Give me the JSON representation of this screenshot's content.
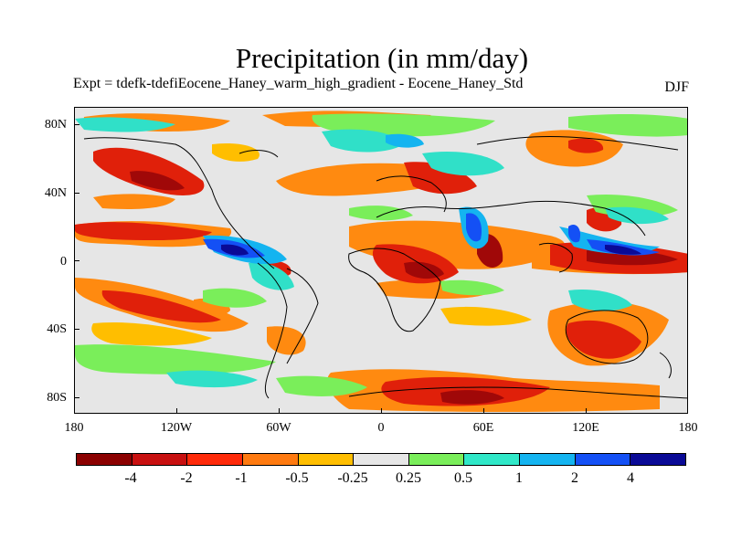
{
  "title": "Precipitation (in mm/day)",
  "subtitle": "Expt = tdefk-tdefiEocene_Haney_warm_high_gradient - Eocene_Haney_Std",
  "season": "DJF",
  "map": {
    "lat_labels": [
      "80N",
      "40N",
      "0",
      "40S",
      "80S"
    ],
    "lon_labels": [
      "180",
      "120W",
      "60W",
      "0",
      "60E",
      "120E",
      "180"
    ],
    "background_color": "#e6e6e6"
  },
  "colorbar": {
    "colors": [
      "#8b0000",
      "#c81010",
      "#ff2a0a",
      "#ff7a10",
      "#ffbe00",
      "#e6e6e6",
      "#7aee5a",
      "#30e8c8",
      "#14b4f0",
      "#1450f5",
      "#0a0a96"
    ],
    "labels": [
      "-4",
      "-2",
      "-1",
      "-0.5",
      "-0.25",
      "0.25",
      "0.5",
      "1",
      "2",
      "4"
    ]
  }
}
